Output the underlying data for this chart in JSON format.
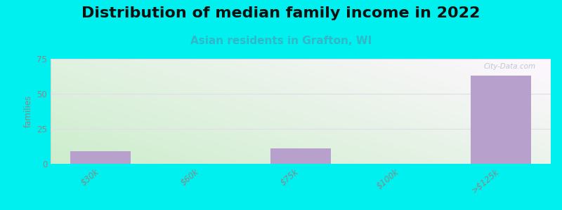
{
  "title": "Distribution of median family income in 2022",
  "subtitle": "Asian residents in Grafton, WI",
  "categories": [
    "$30k",
    "$60k",
    "$75k",
    "$100k",
    ">$125k"
  ],
  "values": [
    9,
    0,
    11,
    0,
    63
  ],
  "bar_color": "#b8a0cc",
  "background_color": "#00f0f0",
  "plot_bg_color_topleft": "#c8eecc",
  "plot_bg_color_topright": "#e8f4f8",
  "plot_bg_color_bottomleft": "#d8f5dc",
  "plot_bg_color_bottomright": "#f0f8ff",
  "ylabel": "families",
  "ylim": [
    0,
    75
  ],
  "yticks": [
    0,
    25,
    50,
    75
  ],
  "title_fontsize": 16,
  "subtitle_fontsize": 11,
  "subtitle_color": "#30b8c8",
  "watermark": "City-Data.com",
  "grid_color": "#e0dce8",
  "tick_color": "#888888"
}
